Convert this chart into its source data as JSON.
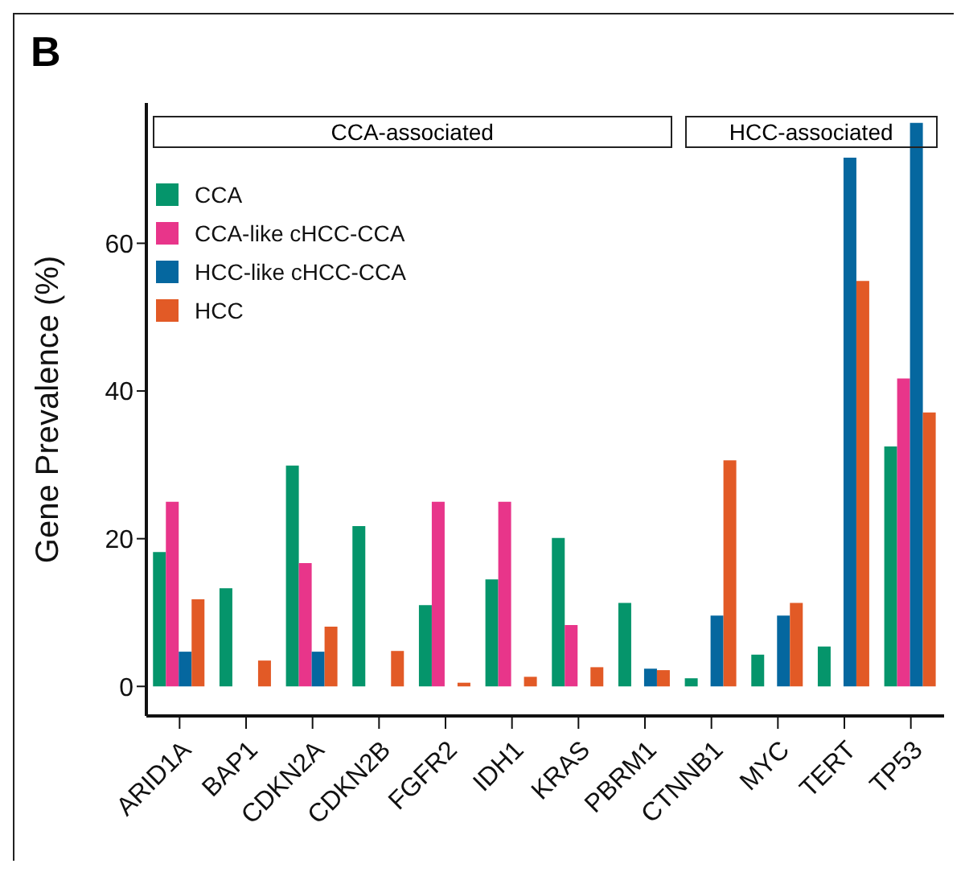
{
  "chart_data": {
    "type": "bar",
    "title": "B",
    "ylabel": "Gene Prevalence (%)",
    "categories": [
      "ARID1A",
      "BAP1",
      "CDKN2A",
      "CDKN2B",
      "FGFR2",
      "IDH1",
      "KRAS",
      "PBRM1",
      "CTNNB1",
      "MYC",
      "TERT",
      "TP53"
    ],
    "series": [
      {
        "name": "CCA",
        "color": "#05956b",
        "values": [
          18.2,
          13.3,
          29.9,
          21.7,
          11,
          14.5,
          20.1,
          11.3,
          1.1,
          4.3,
          5.4,
          32.5
        ]
      },
      {
        "name": "CCA-like cHCC-CCA",
        "color": "#e8358a",
        "values": [
          25,
          0,
          16.7,
          0,
          25,
          25,
          8.3,
          0,
          0,
          0,
          0,
          41.7
        ]
      },
      {
        "name": "HCC-like cHCC-CCA",
        "color": "#05679f",
        "values": [
          4.7,
          0,
          4.7,
          0,
          0,
          0,
          0,
          2.4,
          9.6,
          9.6,
          71.6,
          76.3
        ]
      },
      {
        "name": "HCC",
        "color": "#e25a26",
        "values": [
          11.8,
          3.5,
          8.1,
          4.8,
          0.5,
          1.3,
          2.6,
          2.2,
          30.6,
          11.3,
          54.9,
          37.1
        ]
      }
    ],
    "annotations": [
      "CCA-associated",
      "HCC-associated"
    ],
    "ylim": [
      -4,
      79
    ],
    "yticks": [
      0,
      20,
      40,
      60
    ],
    "grid": false,
    "legend": "top left"
  }
}
